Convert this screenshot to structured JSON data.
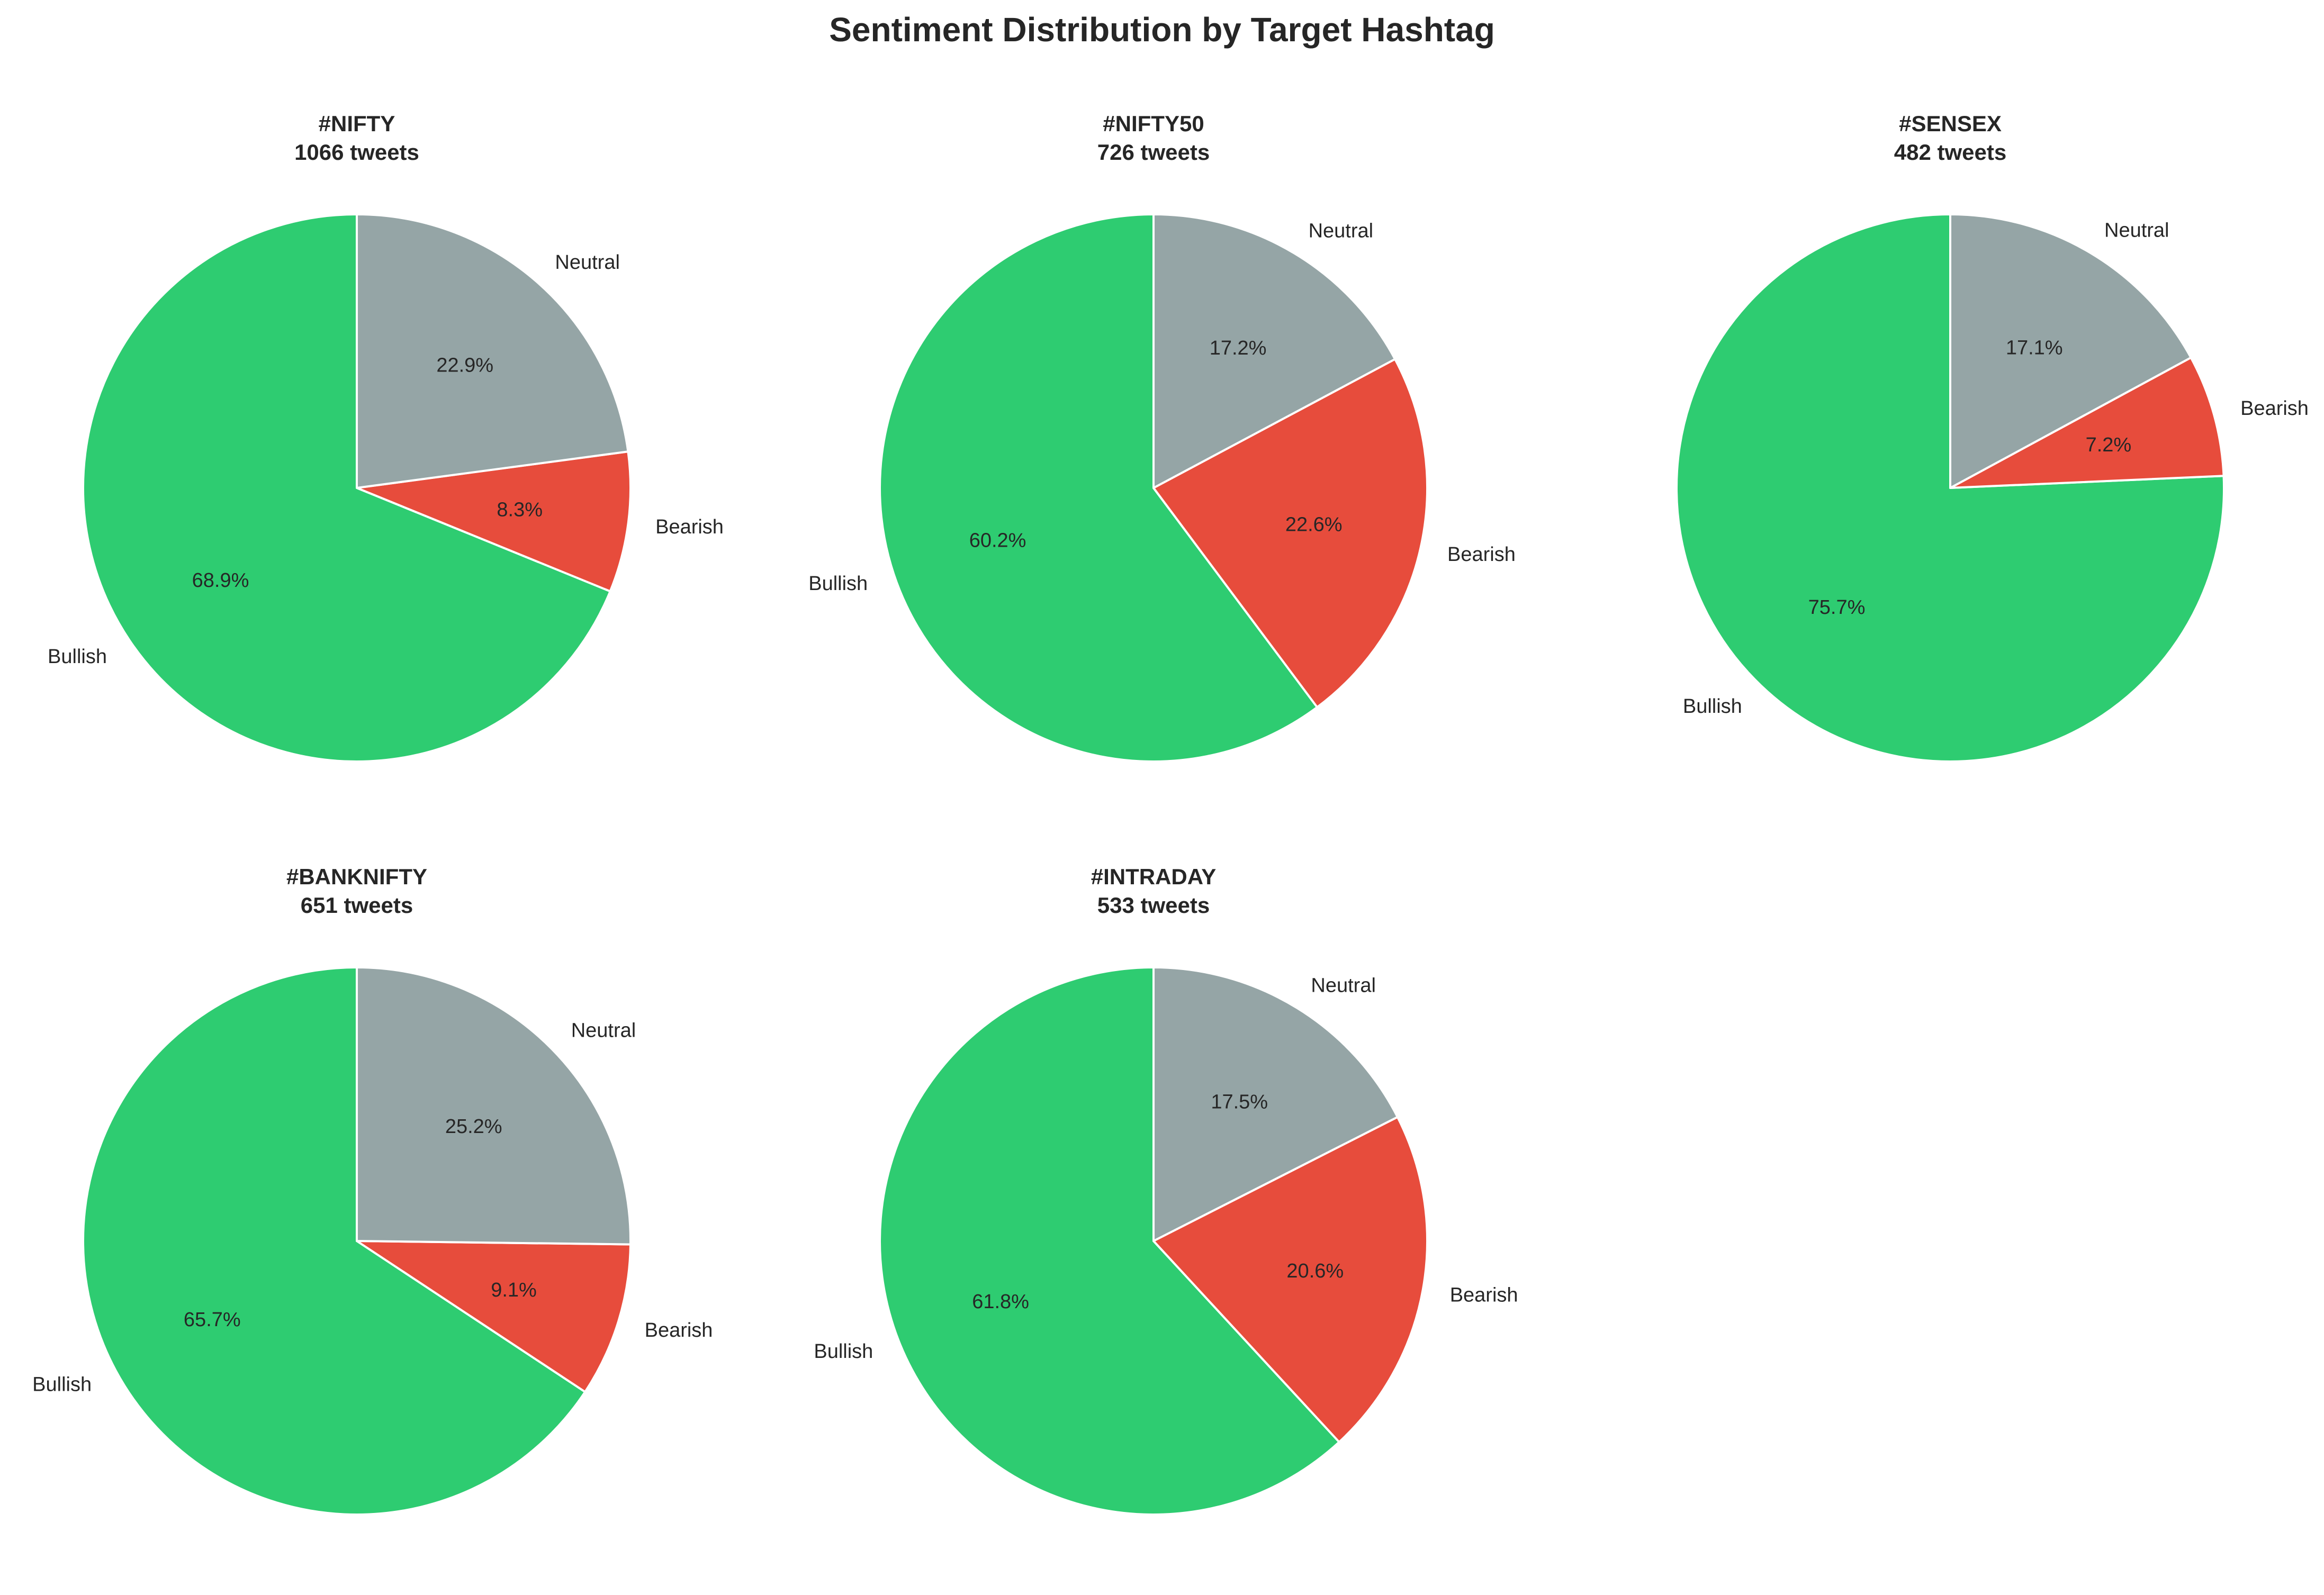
{
  "figure": {
    "title": "Sentiment Distribution by Target Hashtag"
  },
  "colors": {
    "Bullish": "#2ecc71",
    "Bearish": "#e74c3c",
    "Neutral": "#95a5a6",
    "edge": "#ffffff",
    "text": "#262626"
  },
  "chart_data": [
    {
      "type": "pie",
      "title": "#NIFTY",
      "subtitle": "1066 tweets",
      "categories": [
        "Bullish",
        "Bearish",
        "Neutral"
      ],
      "values": [
        68.9,
        8.3,
        22.9
      ],
      "value_labels": [
        "68.9%",
        "8.3%",
        "22.9%"
      ]
    },
    {
      "type": "pie",
      "title": "#NIFTY50",
      "subtitle": "726 tweets",
      "categories": [
        "Bullish",
        "Bearish",
        "Neutral"
      ],
      "values": [
        60.2,
        22.6,
        17.2
      ],
      "value_labels": [
        "60.2%",
        "22.6%",
        "17.2%"
      ]
    },
    {
      "type": "pie",
      "title": "#SENSEX",
      "subtitle": "482 tweets",
      "categories": [
        "Bullish",
        "Bearish",
        "Neutral"
      ],
      "values": [
        75.7,
        7.2,
        17.1
      ],
      "value_labels": [
        "75.7%",
        "7.2%",
        "17.1%"
      ]
    },
    {
      "type": "pie",
      "title": "#BANKNIFTY",
      "subtitle": "651 tweets",
      "categories": [
        "Bullish",
        "Bearish",
        "Neutral"
      ],
      "values": [
        65.7,
        9.1,
        25.2
      ],
      "value_labels": [
        "65.7%",
        "9.1%",
        "25.2%"
      ]
    },
    {
      "type": "pie",
      "title": "#INTRADAY",
      "subtitle": "533 tweets",
      "categories": [
        "Bullish",
        "Bearish",
        "Neutral"
      ],
      "values": [
        61.8,
        20.6,
        17.5
      ],
      "value_labels": [
        "61.8%",
        "20.6%",
        "17.5%"
      ]
    }
  ]
}
